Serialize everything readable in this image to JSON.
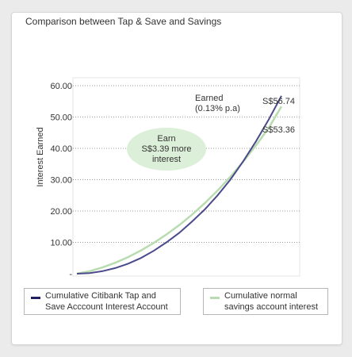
{
  "chart_data": {
    "type": "line",
    "title": "Comparison between Tap & Save and Savings",
    "ylabel": "Interest Earned",
    "ylim": [
      0,
      60
    ],
    "yticks": [
      "60.00",
      "50.00",
      "40.00",
      "30.00",
      "20.00",
      "10.00",
      "-"
    ],
    "ytick_values": [
      60,
      50,
      40,
      30,
      20,
      10,
      0
    ],
    "grid": "horizontal dotted",
    "series": [
      {
        "name": "Cumulative Citibank Tap and Save Acccount Interest Account",
        "legend_lines": [
          "Cumulative Citibank Tap and",
          "Save Acccount Interest Account"
        ],
        "color": "#4a4a8c",
        "end_label": "S$56.74",
        "values": [
          0,
          0.2,
          0.8,
          1.8,
          3.2,
          5.0,
          7.3,
          10.0,
          13.0,
          16.6,
          20.5,
          25.0,
          30.0,
          35.8,
          42.2,
          49.2,
          56.74
        ]
      },
      {
        "name": "Cumulative normal savings account interest",
        "legend_lines": [
          "Cumulative normal",
          "savings account interest"
        ],
        "color": "#b8dcb0",
        "end_label": "S$53.36",
        "values": [
          0,
          0.8,
          2.0,
          3.5,
          5.3,
          7.4,
          9.8,
          12.5,
          15.5,
          18.8,
          22.5,
          26.5,
          30.9,
          35.7,
          40.9,
          46.5,
          53.36
        ]
      }
    ],
    "annotations": {
      "earned": [
        "Earned",
        "(0.13% p.a)"
      ],
      "bubble": [
        "Earn",
        "S$3.39 more",
        "interest"
      ],
      "bubble_color": "#dcefd8"
    }
  }
}
